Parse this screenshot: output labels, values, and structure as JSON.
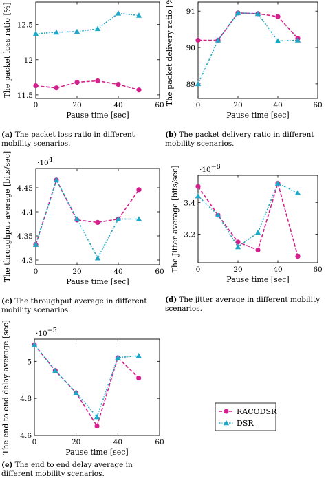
{
  "colors": {
    "racodsr": "#d4208c",
    "dsr": "#1ea8c8",
    "axis": "#000000"
  },
  "legend": {
    "entries": [
      "RACODSR",
      "DSR"
    ],
    "placement": "bottom-right"
  },
  "captions": [
    {
      "label": "(a)",
      "text": "The packet loss ratio in different mobility scenarios."
    },
    {
      "label": "(b)",
      "text": "The packet delivery ratio in different mobility scenarios."
    },
    {
      "label": "(c)",
      "text": "The throughput average in different mobility scenarios."
    },
    {
      "label": "(d)",
      "text": "The jitter average in different mobility scenarios."
    },
    {
      "label": "(e)",
      "text": "The end to end delay average in different mobility scenarios."
    }
  ],
  "chart_data": [
    {
      "id": "a",
      "type": "line",
      "xlabel": "Pause time [sec]",
      "ylabel": "The packet loss ratio [%]",
      "xlim": [
        0,
        60
      ],
      "ylim": [
        11.45,
        12.82
      ],
      "xticks": [
        0,
        20,
        40,
        60
      ],
      "xtick_labels": [
        "0",
        "20",
        "40",
        "60"
      ],
      "yticks": [
        11.5,
        12,
        12.5
      ],
      "ytick_labels": [
        "11.5",
        "12",
        "12.5"
      ],
      "exponent": "",
      "series": [
        {
          "name": "RACODSR",
          "x": [
            0,
            10,
            20,
            30,
            40,
            50
          ],
          "y": [
            11.63,
            11.6,
            11.68,
            11.7,
            11.65,
            11.57
          ]
        },
        {
          "name": "DSR",
          "x": [
            0,
            10,
            20,
            30,
            40,
            50
          ],
          "y": [
            12.37,
            12.39,
            12.4,
            12.44,
            12.66,
            12.63
          ]
        }
      ]
    },
    {
      "id": "b",
      "type": "line",
      "xlabel": "Pause time [sec]",
      "ylabel": "The packet delivery ratio [%]",
      "xlim": [
        0,
        60
      ],
      "ylim": [
        88.6,
        91.25
      ],
      "xticks": [
        0,
        20,
        40,
        60
      ],
      "xtick_labels": [
        "0",
        "20",
        "40",
        "60"
      ],
      "yticks": [
        89,
        90,
        91
      ],
      "ytick_labels": [
        "89",
        "90",
        "91"
      ],
      "exponent": "",
      "series": [
        {
          "name": "RACODSR",
          "x": [
            0,
            10,
            20,
            30,
            40,
            50
          ],
          "y": [
            90.2,
            90.2,
            90.95,
            90.93,
            90.85,
            90.25
          ]
        },
        {
          "name": "DSR",
          "x": [
            0,
            10,
            20,
            30,
            40,
            50
          ],
          "y": [
            89.0,
            90.2,
            90.95,
            90.93,
            90.18,
            90.2
          ]
        }
      ]
    },
    {
      "id": "c",
      "type": "line",
      "xlabel": "Pause time [sec]",
      "ylabel": "The throughput average [bits/sec]",
      "xlim": [
        0,
        60
      ],
      "ylim": [
        4.29,
        4.49
      ],
      "xticks": [
        0,
        20,
        40,
        60
      ],
      "xtick_labels": [
        "0",
        "20",
        "40",
        "60"
      ],
      "yticks": [
        4.3,
        4.35,
        4.4,
        4.45
      ],
      "ytick_labels": [
        "4.3",
        "4.35",
        "4.4",
        "4.45"
      ],
      "exponent": "·10^4",
      "series": [
        {
          "name": "RACODSR",
          "x": [
            0,
            10,
            20,
            30,
            40,
            50
          ],
          "y": [
            4.332,
            4.466,
            4.383,
            4.378,
            4.385,
            4.446
          ]
        },
        {
          "name": "DSR",
          "x": [
            0,
            10,
            20,
            30,
            40,
            50
          ],
          "y": [
            4.332,
            4.466,
            4.385,
            4.304,
            4.385,
            4.385
          ]
        }
      ]
    },
    {
      "id": "d",
      "type": "line",
      "xlabel": "Pause time [sec]",
      "ylabel": "The Jitter average [bits/sec]",
      "xlim": [
        0,
        60
      ],
      "ylim": [
        3.02,
        3.57
      ],
      "xticks": [
        0,
        20,
        40,
        60
      ],
      "xtick_labels": [
        "0",
        "20",
        "40",
        "60"
      ],
      "yticks": [
        3.2,
        3.4
      ],
      "ytick_labels": [
        "3.2",
        "3.4"
      ],
      "exponent": "·10^−8",
      "series": [
        {
          "name": "RACODSR",
          "x": [
            0,
            10,
            20,
            30,
            40,
            50
          ],
          "y": [
            3.5,
            3.32,
            3.15,
            3.1,
            3.52,
            3.06
          ]
        },
        {
          "name": "DSR",
          "x": [
            0,
            10,
            20,
            30,
            40,
            50
          ],
          "y": [
            3.44,
            3.32,
            3.12,
            3.21,
            3.52,
            3.46
          ]
        }
      ]
    },
    {
      "id": "e",
      "type": "line",
      "xlabel": "Pause time [sec]",
      "ylabel": "The end to end delay average [sec]",
      "xlim": [
        0,
        60
      ],
      "ylim": [
        4.6,
        5.12
      ],
      "xticks": [
        0,
        20,
        40,
        60
      ],
      "xtick_labels": [
        "0",
        "20",
        "40",
        "60"
      ],
      "yticks": [
        4.6,
        4.8,
        5.0
      ],
      "ytick_labels": [
        "4.6",
        "4.8",
        "5"
      ],
      "exponent": "·10^−5",
      "series": [
        {
          "name": "RACODSR",
          "x": [
            0,
            10,
            20,
            30,
            40,
            50
          ],
          "y": [
            5.09,
            4.95,
            4.83,
            4.65,
            5.02,
            4.91
          ]
        },
        {
          "name": "DSR",
          "x": [
            0,
            10,
            20,
            30,
            40,
            50
          ],
          "y": [
            5.09,
            4.95,
            4.83,
            4.7,
            5.02,
            5.03
          ]
        }
      ]
    }
  ]
}
